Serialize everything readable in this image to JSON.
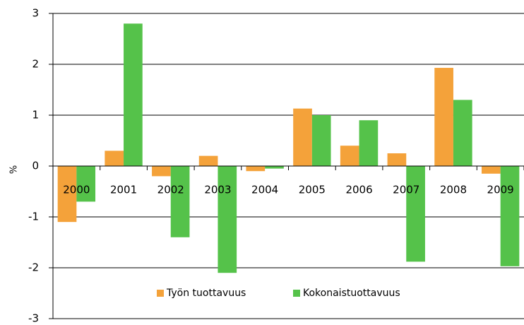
{
  "chart_data": {
    "type": "bar",
    "y_label": "%",
    "categories": [
      "2000",
      "2001",
      "2002",
      "2003",
      "2004",
      "2005",
      "2006",
      "2007",
      "2008",
      "2009"
    ],
    "series": [
      {
        "name": "Työn tuottavuus",
        "color": "#f4a23a",
        "values": [
          -1.1,
          0.3,
          -0.2,
          0.2,
          -0.1,
          1.13,
          0.4,
          0.25,
          1.93,
          -0.15
        ]
      },
      {
        "name": "Kokonaistuottavuus",
        "color": "#55c24a",
        "values": [
          -0.7,
          2.8,
          -1.4,
          -2.1,
          -0.05,
          1.0,
          0.9,
          -1.88,
          1.3,
          -1.97
        ]
      }
    ],
    "ylim": [
      -3,
      3
    ],
    "yticks": [
      -3,
      -2,
      -1,
      0,
      1,
      2,
      3
    ],
    "grid": true,
    "legend": "bottom"
  }
}
